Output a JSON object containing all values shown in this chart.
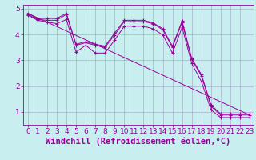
{
  "xlabel": "Windchill (Refroidissement éolien,°C)",
  "background_color": "#c8eef0",
  "line_color": "#990099",
  "grid_color": "#9999bb",
  "xlim_min": -0.5,
  "xlim_max": 23.4,
  "ylim_min": 0.5,
  "ylim_max": 5.15,
  "yticks": [
    1,
    2,
    3,
    4,
    5
  ],
  "xticks": [
    0,
    1,
    2,
    3,
    4,
    5,
    6,
    7,
    8,
    9,
    10,
    11,
    12,
    13,
    14,
    15,
    16,
    17,
    18,
    19,
    20,
    21,
    22,
    23
  ],
  "line1_x": [
    0,
    1,
    2,
    3,
    4,
    5,
    6,
    7,
    8,
    9,
    10,
    11,
    12,
    13,
    14,
    15,
    16,
    17,
    18,
    19,
    20,
    21,
    22,
    23
  ],
  "line1_y": [
    4.82,
    4.62,
    4.62,
    4.62,
    4.82,
    3.62,
    3.72,
    3.62,
    3.55,
    4.05,
    4.55,
    4.55,
    4.55,
    4.45,
    4.22,
    3.55,
    4.52,
    3.07,
    2.45,
    1.27,
    0.92,
    0.92,
    0.92,
    0.92
  ],
  "line2_x": [
    0,
    1,
    2,
    3,
    4,
    5,
    6,
    7,
    8,
    9,
    10,
    11,
    12,
    13,
    14,
    15,
    16,
    17,
    18,
    19,
    20,
    21,
    22,
    23
  ],
  "line2_y": [
    4.78,
    4.58,
    4.55,
    4.55,
    4.78,
    3.58,
    3.68,
    3.58,
    3.5,
    3.98,
    4.5,
    4.5,
    4.5,
    4.42,
    4.18,
    3.5,
    4.48,
    3.03,
    2.4,
    1.22,
    0.88,
    0.88,
    0.88,
    0.88
  ],
  "line3_x": [
    0,
    1,
    2,
    3,
    4,
    5,
    6,
    7,
    8,
    9,
    10,
    11,
    12,
    13,
    14,
    15,
    16,
    17,
    18,
    19,
    20,
    21,
    22,
    23
  ],
  "line3_y": [
    4.75,
    4.55,
    4.48,
    4.42,
    4.58,
    3.32,
    3.58,
    3.28,
    3.28,
    3.78,
    4.32,
    4.32,
    4.32,
    4.22,
    3.98,
    3.28,
    4.28,
    2.88,
    2.18,
    1.08,
    0.78,
    0.78,
    0.78,
    0.78
  ],
  "line4_x": [
    0,
    23
  ],
  "line4_y": [
    4.82,
    0.88
  ],
  "tick_fontsize": 6.5,
  "xlabel_fontsize": 7.5
}
